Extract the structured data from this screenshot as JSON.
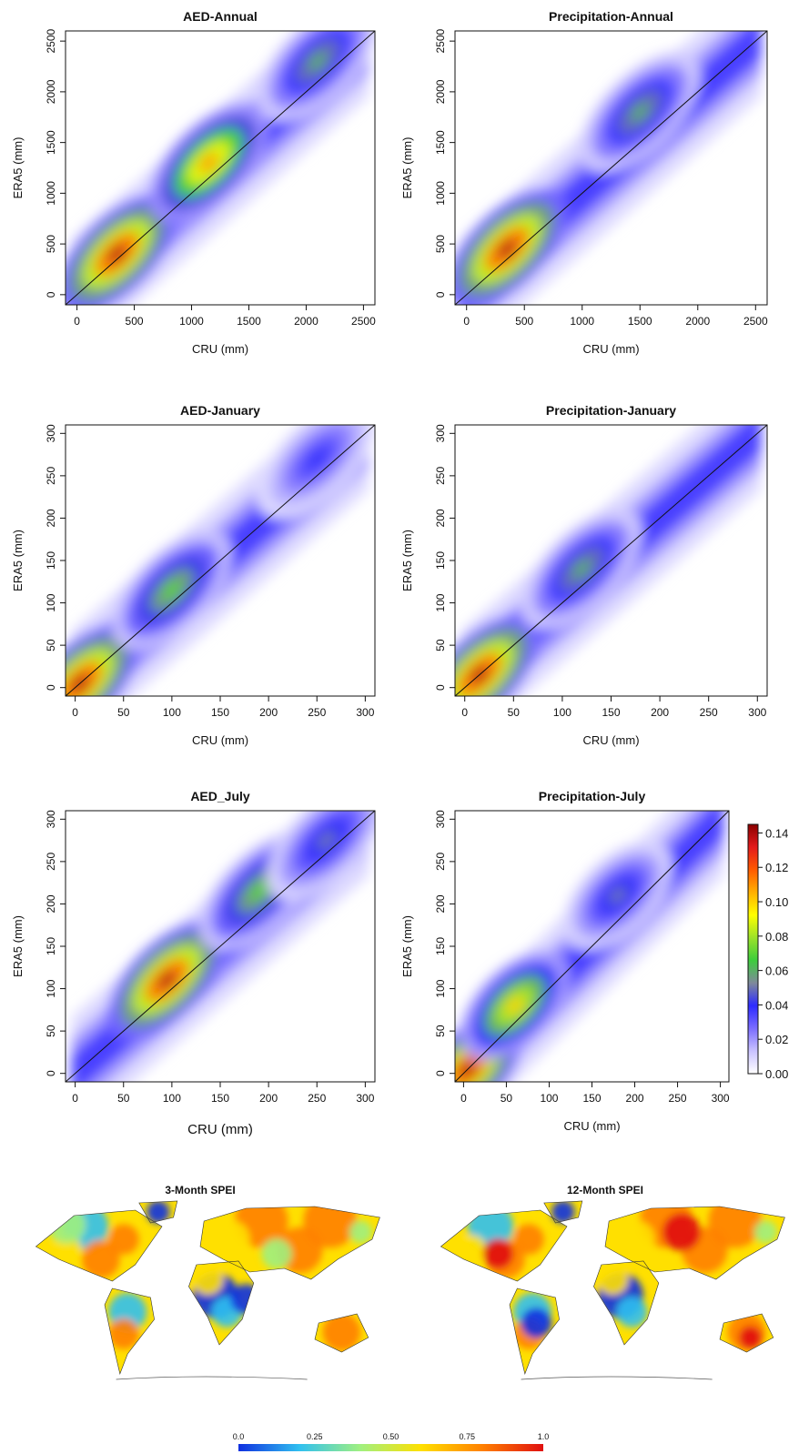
{
  "figure": {
    "colorbar": {
      "ticks": [
        "0.00",
        "0.02",
        "0.04",
        "0.06",
        "0.08",
        "0.10",
        "0.12",
        "0.14"
      ],
      "range": [
        0,
        0.145
      ],
      "colors": [
        "#ffffff",
        "#c9c2ff",
        "#7a6cff",
        "#2d2bff",
        "#7f8a9a",
        "#3ccd3c",
        "#9be22a",
        "#ffff00",
        "#ffb000",
        "#ff5a00",
        "#e31a1c",
        "#8b0000"
      ]
    },
    "map_colorbar": {
      "ticks": [
        "0.0",
        "0.25",
        "0.50",
        "0.75",
        "1.0"
      ],
      "colors": [
        "#1030e0",
        "#30c0f0",
        "#a0f080",
        "#ffe000",
        "#ff8000",
        "#e01010"
      ]
    },
    "maps": [
      {
        "title": "3-Month SPEI"
      },
      {
        "title": "12-Month SPEI"
      }
    ]
  },
  "chart_data": [
    {
      "type": "heatmap",
      "title": "AED-Annual",
      "xlabel": "CRU (mm)",
      "ylabel": "ERA5 (mm)",
      "xlim": [
        -100,
        2600
      ],
      "ylim": [
        -100,
        2600
      ],
      "xticks": [
        "0",
        "500",
        "1000",
        "1500",
        "2000",
        "2500"
      ],
      "yticks": [
        "0",
        "500",
        "1000",
        "1500",
        "2000",
        "2500"
      ],
      "density_hotspots": [
        {
          "x": 350,
          "y": 400,
          "density": 0.14
        },
        {
          "x": 1150,
          "y": 1300,
          "density": 0.11
        },
        {
          "x": 2100,
          "y": 2300,
          "density": 0.06
        }
      ],
      "reference_line": "1:1"
    },
    {
      "type": "heatmap",
      "title": "Precipitation-Annual",
      "xlabel": "CRU (mm)",
      "ylabel": "ERA5 (mm)",
      "xlim": [
        -100,
        2600
      ],
      "ylim": [
        -100,
        2600
      ],
      "xticks": [
        "0",
        "500",
        "1000",
        "1500",
        "2000",
        "2500"
      ],
      "yticks": [
        "0",
        "500",
        "1000",
        "1500",
        "2000",
        "2500"
      ],
      "density_hotspots": [
        {
          "x": 350,
          "y": 450,
          "density": 0.14
        },
        {
          "x": 1500,
          "y": 1800,
          "density": 0.06
        }
      ],
      "reference_line": "1:1"
    },
    {
      "type": "heatmap",
      "title": "AED-January",
      "xlabel": "CRU (mm)",
      "ylabel": "ERA5 (mm)",
      "xlim": [
        -10,
        310
      ],
      "ylim": [
        -10,
        310
      ],
      "xticks": [
        "0",
        "50",
        "100",
        "150",
        "200",
        "250",
        "300"
      ],
      "yticks": [
        "0",
        "50",
        "100",
        "150",
        "200",
        "250",
        "300"
      ],
      "density_hotspots": [
        {
          "x": 5,
          "y": 5,
          "density": 0.14
        },
        {
          "x": 100,
          "y": 115,
          "density": 0.07
        },
        {
          "x": 250,
          "y": 270,
          "density": 0.04
        }
      ],
      "reference_line": "1:1"
    },
    {
      "type": "heatmap",
      "title": "Precipitation-January",
      "xlabel": "CRU (mm)",
      "ylabel": "ERA5 (mm)",
      "xlim": [
        -10,
        310
      ],
      "ylim": [
        -10,
        310
      ],
      "xticks": [
        "0",
        "50",
        "100",
        "150",
        "200",
        "250",
        "300"
      ],
      "yticks": [
        "0",
        "50",
        "100",
        "150",
        "200",
        "250",
        "300"
      ],
      "density_hotspots": [
        {
          "x": 15,
          "y": 15,
          "density": 0.14
        },
        {
          "x": 120,
          "y": 140,
          "density": 0.06
        }
      ],
      "reference_line": "1:1"
    },
    {
      "type": "heatmap",
      "title": "AED_July",
      "xlabel": "CRU (mm)",
      "ylabel": "ERA5 (mm)",
      "xlim": [
        -10,
        310
      ],
      "ylim": [
        -10,
        310
      ],
      "xticks": [
        "0",
        "50",
        "100",
        "150",
        "200",
        "250",
        "300"
      ],
      "yticks": [
        "0",
        "50",
        "100",
        "150",
        "200",
        "250",
        "300"
      ],
      "density_hotspots": [
        {
          "x": 95,
          "y": 110,
          "density": 0.14
        },
        {
          "x": 190,
          "y": 215,
          "density": 0.07
        },
        {
          "x": 260,
          "y": 275,
          "density": 0.05
        }
      ],
      "reference_line": "1:1"
    },
    {
      "type": "heatmap",
      "title": "Precipitation-July",
      "xlabel": "CRU (mm)",
      "ylabel": "ERA5 (mm)",
      "xlim": [
        -10,
        310
      ],
      "ylim": [
        -10,
        310
      ],
      "xticks": [
        "0",
        "50",
        "100",
        "150",
        "200",
        "250",
        "300"
      ],
      "yticks": [
        "0",
        "50",
        "100",
        "150",
        "200",
        "250",
        "300"
      ],
      "density_hotspots": [
        {
          "x": 5,
          "y": 5,
          "density": 0.14
        },
        {
          "x": 60,
          "y": 80,
          "density": 0.1
        },
        {
          "x": 180,
          "y": 210,
          "density": 0.05
        }
      ],
      "reference_line": "1:1"
    }
  ]
}
